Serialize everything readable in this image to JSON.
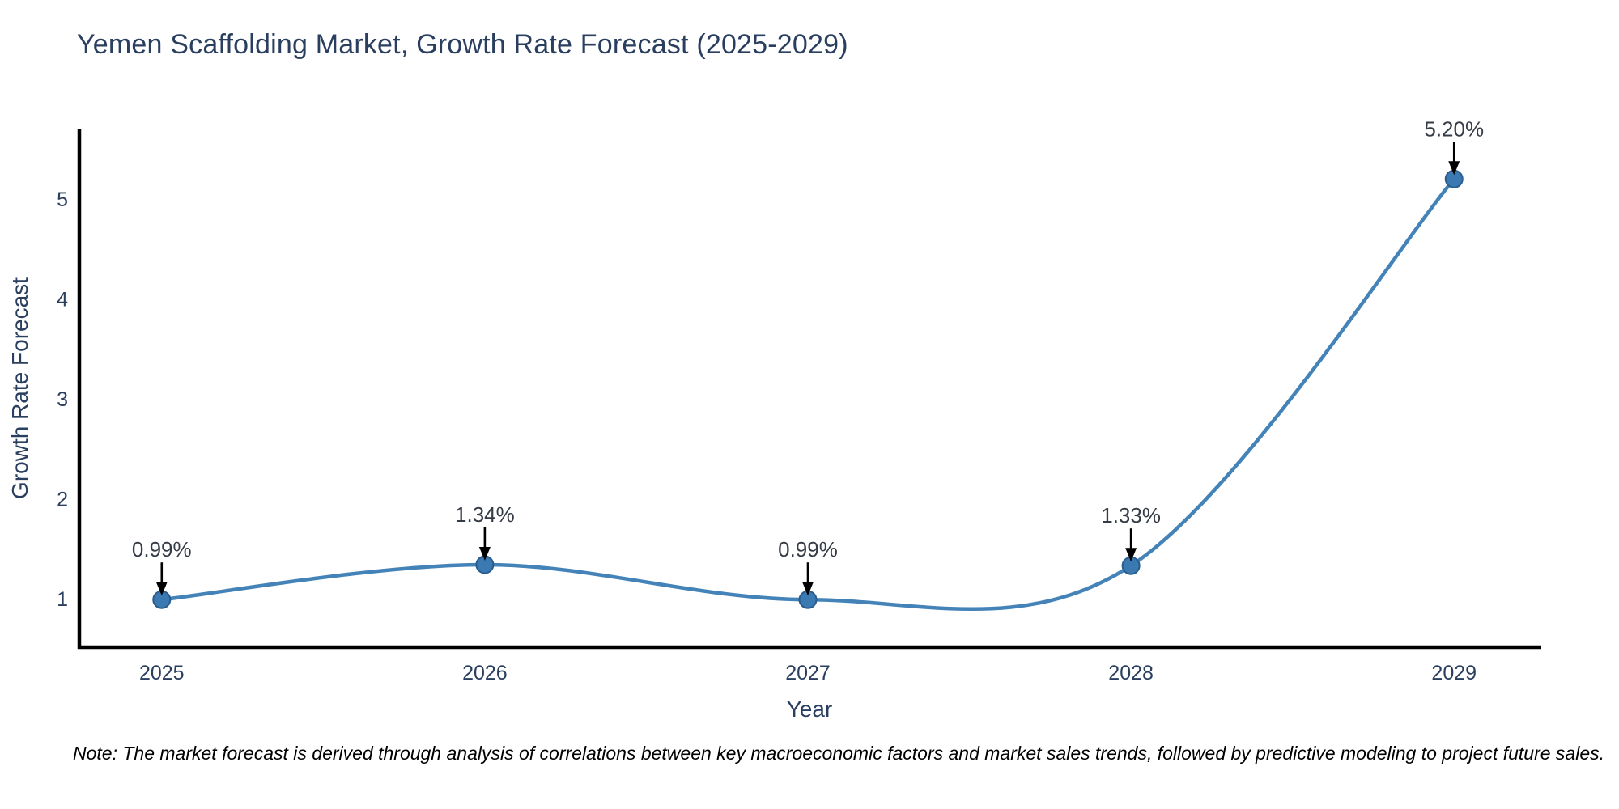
{
  "chart_data": {
    "type": "line",
    "title": "Yemen Scaffolding Market, Growth Rate Forecast (2025-2029)",
    "xlabel": "Year",
    "ylabel": "Growth Rate Forecast",
    "x": [
      2025,
      2026,
      2027,
      2028,
      2029
    ],
    "values": [
      0.99,
      1.34,
      0.99,
      1.33,
      5.2
    ],
    "point_labels": [
      "0.99%",
      "1.34%",
      "0.99%",
      "1.33%",
      "5.20%"
    ],
    "xticks": [
      "2025",
      "2026",
      "2027",
      "2028",
      "2029"
    ],
    "xtick_values": [
      2025,
      2026,
      2027,
      2028,
      2029
    ],
    "yticks": [
      1,
      2,
      3,
      4,
      5
    ],
    "xlim": [
      2024.745,
      2029.27
    ],
    "ylim": [
      0.514,
      5.696
    ],
    "grid": false,
    "legend_position": "none",
    "line_smoothing": "spline",
    "colors": {
      "line": "#4383b8",
      "marker_fill": "#3a79b2",
      "marker_edge": "#2a5d8c",
      "axis_spine": "#000000",
      "axis_text": "#2a3f5f",
      "annotation_text": "#363c46",
      "arrow": "#000000",
      "background": "#ffffff"
    }
  },
  "note": "Note: The market forecast is derived through analysis of correlations between key macroeconomic factors and market sales trends, followed by predictive modeling to project future sales."
}
